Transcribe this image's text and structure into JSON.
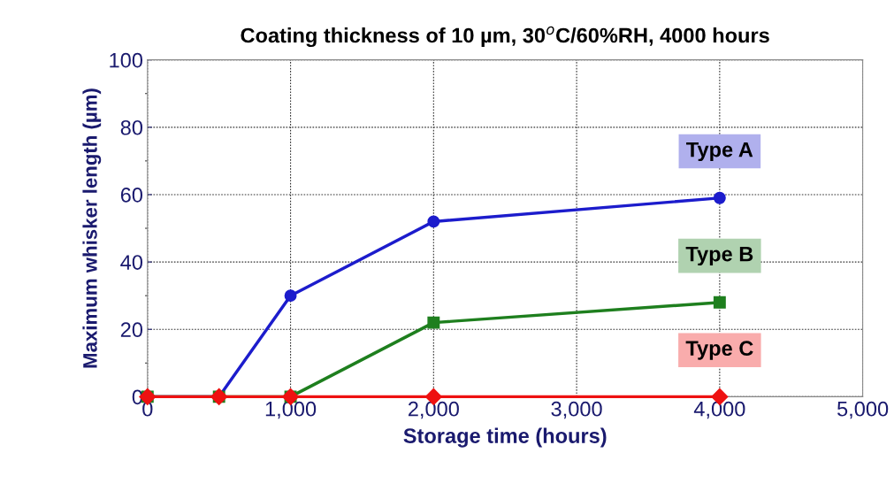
{
  "chart_data": {
    "type": "line",
    "title": "Coating thickness of 10 µm, 30$^{o}$C/60%RH, 4000 hours",
    "xlabel": "Storage time (hours)",
    "ylabel": "Maximum whisker length (µm)",
    "xlim": [
      0,
      5000
    ],
    "ylim": [
      0,
      100
    ],
    "xticks": [
      0,
      {
        "value": 1000,
        "label": "1,000"
      },
      {
        "value": 2000,
        "label": "2,000"
      },
      {
        "value": 3000,
        "label": "3,000"
      },
      {
        "value": 4000,
        "label": "4,000"
      },
      {
        "value": 5000,
        "label": "5,000"
      }
    ],
    "yticks": [
      0,
      20,
      40,
      60,
      80,
      100
    ],
    "grid": true,
    "line_style": "solid",
    "series": [
      {
        "name": "Type A",
        "color": "#1c1ccc",
        "marker": "circle",
        "x": [
          0,
          500,
          1000,
          2000,
          4000
        ],
        "values": [
          0,
          0,
          30,
          52,
          59
        ]
      },
      {
        "name": "Type B",
        "color": "#1e7f1e",
        "marker": "square",
        "x": [
          0,
          500,
          1000,
          2000,
          4000
        ],
        "values": [
          0,
          0,
          0,
          22,
          28
        ]
      },
      {
        "name": "Type C",
        "color": "#ee1111",
        "marker": "diamond",
        "x": [
          0,
          500,
          1000,
          2000,
          4000
        ],
        "values": [
          0,
          0,
          0,
          0,
          0
        ]
      }
    ]
  }
}
